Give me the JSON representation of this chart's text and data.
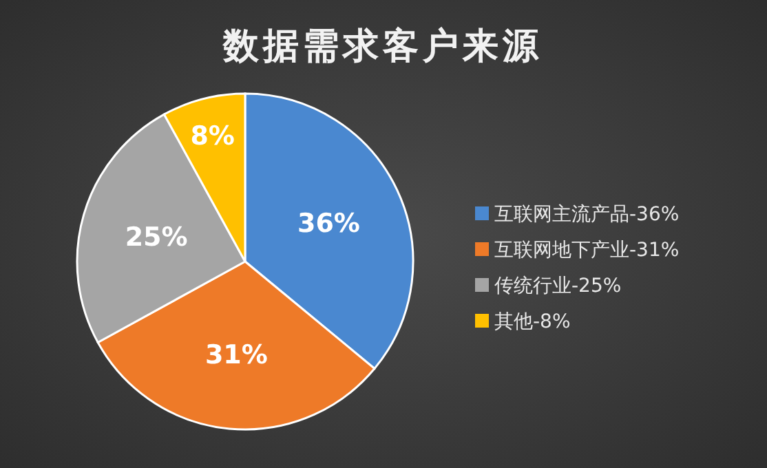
{
  "chart_data": {
    "type": "pie",
    "title": "数据需求客户来源",
    "categories": [
      "互联网主流产品-36%",
      "互联网地下产业-31%",
      "传统行业-25%",
      "其他-8%"
    ],
    "values": [
      36,
      31,
      25,
      8
    ],
    "colors": [
      "#4a88d0",
      "#ee7a28",
      "#a5a5a5",
      "#ffc000"
    ],
    "value_labels": [
      "36%",
      "31%",
      "25%",
      "8%"
    ],
    "legend": "right"
  }
}
